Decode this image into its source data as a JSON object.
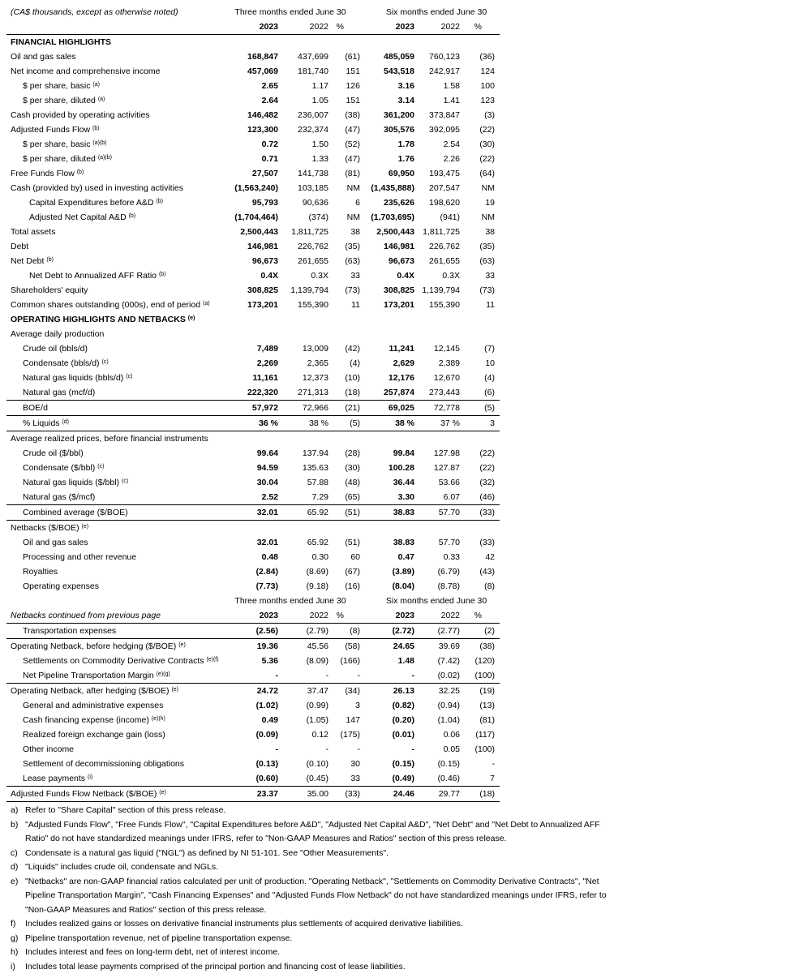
{
  "header": {
    "unit_note": "(CA$ thousands, except as otherwise noted)",
    "group_q": "Three months ended June 30",
    "group_h": "Six months ended June 30",
    "y2023": "2023",
    "y2022": "2022",
    "pct": "%"
  },
  "header2": {
    "unit_note": "Netbacks continued from previous page",
    "group_q": "Three months ended June 30",
    "group_h": "Six months ended June 30",
    "y2023": "2023",
    "y2022": "2022",
    "pct": "%"
  },
  "rows": [
    {
      "label": "FINANCIAL HIGHLIGHTS",
      "type": "sec"
    },
    {
      "label": "Oil and gas sales",
      "v": [
        "168,847",
        "437,699",
        "(61)",
        "485,059",
        "760,123",
        "(36)"
      ]
    },
    {
      "label": "Net income and comprehensive income",
      "v": [
        "457,069",
        "181,740",
        "151",
        "543,518",
        "242,917",
        "124"
      ]
    },
    {
      "label": "$ per share, basic",
      "sup": "(a)",
      "ind": 1,
      "v": [
        "2.65",
        "1.17",
        "126",
        "3.16",
        "1.58",
        "100"
      ]
    },
    {
      "label": "$ per share, diluted",
      "sup": "(a)",
      "ind": 1,
      "v": [
        "2.64",
        "1.05",
        "151",
        "3.14",
        "1.41",
        "123"
      ]
    },
    {
      "label": "Cash provided by operating activities",
      "v": [
        "146,482",
        "236,007",
        "(38)",
        "361,200",
        "373,847",
        "(3)"
      ]
    },
    {
      "label": "Adjusted Funds Flow",
      "sup": "(b)",
      "v": [
        "123,300",
        "232,374",
        "(47)",
        "305,576",
        "392,095",
        "(22)"
      ]
    },
    {
      "label": "$ per share, basic",
      "sup": "(a)(b)",
      "ind": 1,
      "v": [
        "0.72",
        "1.50",
        "(52)",
        "1.78",
        "2.54",
        "(30)"
      ]
    },
    {
      "label": "$ per share, diluted",
      "sup": "(a)(b)",
      "ind": 1,
      "v": [
        "0.71",
        "1.33",
        "(47)",
        "1.76",
        "2.26",
        "(22)"
      ]
    },
    {
      "label": "Free Funds Flow",
      "sup": "(b)",
      "v": [
        "27,507",
        "141,738",
        "(81)",
        "69,950",
        "193,475",
        "(64)"
      ]
    },
    {
      "label": "Cash (provided by) used in investing activities",
      "v": [
        "(1,563,240)",
        "103,185",
        "NM",
        "(1,435,888)",
        "207,547",
        "NM"
      ]
    },
    {
      "label": "Capital Expenditures before A&D",
      "sup": "(b)",
      "ind": 2,
      "v": [
        "95,793",
        "90,636",
        "6",
        "235,626",
        "198,620",
        "19"
      ]
    },
    {
      "label": "Adjusted Net Capital A&D",
      "sup": "(b)",
      "ind": 2,
      "v": [
        "(1,704,464)",
        "(374)",
        "NM",
        "(1,703,695)",
        "(941)",
        "NM"
      ]
    },
    {
      "label": "Total assets",
      "v": [
        "2,500,443",
        "1,811,725",
        "38",
        "2,500,443",
        "1,811,725",
        "38"
      ]
    },
    {
      "label": "Debt",
      "v": [
        "146,981",
        "226,762",
        "(35)",
        "146,981",
        "226,762",
        "(35)"
      ]
    },
    {
      "label": "Net Debt",
      "sup": "(b)",
      "v": [
        "96,673",
        "261,655",
        "(63)",
        "96,673",
        "261,655",
        "(63)"
      ]
    },
    {
      "label": "Net Debt to Annualized AFF Ratio",
      "sup": "(b)",
      "ind": 2,
      "v": [
        "0.4X",
        "0.3X",
        "33",
        "0.4X",
        "0.3X",
        "33"
      ]
    },
    {
      "label": "Shareholders' equity",
      "v": [
        "308,825",
        "1,139,794",
        "(73)",
        "308,825",
        "1,139,794",
        "(73)"
      ]
    },
    {
      "label": "Common shares outstanding (000s), end of period",
      "sup": "(a)",
      "v": [
        "173,201",
        "155,390",
        "11",
        "173,201",
        "155,390",
        "11"
      ]
    },
    {
      "label": "OPERATING HIGHLIGHTS AND NETBACKS",
      "sup": "(e)",
      "type": "sec"
    },
    {
      "label": "Average daily production",
      "type": "plain"
    },
    {
      "label": "Crude oil (bbls/d)",
      "ind": 1,
      "v": [
        "7,489",
        "13,009",
        "(42)",
        "11,241",
        "12,145",
        "(7)"
      ]
    },
    {
      "label": "Condensate (bbls/d)",
      "sup": "(c)",
      "ind": 1,
      "v": [
        "2,269",
        "2,365",
        "(4)",
        "2,629",
        "2,389",
        "10"
      ]
    },
    {
      "label": "Natural gas liquids (bbls/d)",
      "sup": "(c)",
      "ind": 1,
      "v": [
        "11,161",
        "12,373",
        "(10)",
        "12,176",
        "12,670",
        "(4)"
      ]
    },
    {
      "label": "Natural gas (mcf/d)",
      "ind": 1,
      "v": [
        "222,320",
        "271,313",
        "(18)",
        "257,874",
        "273,443",
        "(6)"
      ]
    },
    {
      "label": "BOE/d",
      "ind": 1,
      "bt": true,
      "v": [
        "57,972",
        "72,966",
        "(21)",
        "69,025",
        "72,778",
        "(5)"
      ]
    },
    {
      "label": "% Liquids",
      "sup": "(d)",
      "ind": 1,
      "bt": true,
      "bb": true,
      "v": [
        "36 %",
        "38 %",
        "(5)",
        "38 %",
        "37 %",
        "3"
      ]
    },
    {
      "label": "Average realized prices, before financial instruments",
      "type": "plain"
    },
    {
      "label": "Crude oil ($/bbl)",
      "ind": 1,
      "v": [
        "99.64",
        "137.94",
        "(28)",
        "99.84",
        "127.98",
        "(22)"
      ]
    },
    {
      "label": "Condensate ($/bbl)",
      "sup": "(c)",
      "ind": 1,
      "v": [
        "94.59",
        "135.63",
        "(30)",
        "100.28",
        "127.87",
        "(22)"
      ]
    },
    {
      "label": "Natural gas liquids ($/bbl)",
      "sup": "(c)",
      "ind": 1,
      "v": [
        "30.04",
        "57.88",
        "(48)",
        "36.44",
        "53.66",
        "(32)"
      ]
    },
    {
      "label": "Natural gas ($/mcf)",
      "ind": 1,
      "v": [
        "2.52",
        "7.29",
        "(65)",
        "3.30",
        "6.07",
        "(46)"
      ]
    },
    {
      "label": "Combined average ($/BOE)",
      "ind": 1,
      "bt": true,
      "bb": true,
      "v": [
        "32.01",
        "65.92",
        "(51)",
        "38.83",
        "57.70",
        "(33)"
      ]
    },
    {
      "label": "Netbacks ($/BOE)",
      "sup": "(e)",
      "type": "plain"
    },
    {
      "label": "Oil and gas sales",
      "ind": 1,
      "v": [
        "32.01",
        "65.92",
        "(51)",
        "38.83",
        "57.70",
        "(33)"
      ]
    },
    {
      "label": "Processing and other revenue",
      "ind": 1,
      "v": [
        "0.48",
        "0.30",
        "60",
        "0.47",
        "0.33",
        "42"
      ]
    },
    {
      "label": "Royalties",
      "ind": 1,
      "v": [
        "(2.84)",
        "(8.69)",
        "(67)",
        "(3.89)",
        "(6.79)",
        "(43)"
      ]
    },
    {
      "label": "Operating expenses",
      "ind": 1,
      "v": [
        "(7.73)",
        "(9.18)",
        "(16)",
        "(8.04)",
        "(8.78)",
        "(8)"
      ]
    }
  ],
  "rows2": [
    {
      "label": "Transportation expenses",
      "ind": 1,
      "v": [
        "(2.56)",
        "(2.79)",
        "(8)",
        "(2.72)",
        "(2.77)",
        "(2)"
      ]
    },
    {
      "label": "Operating Netback, before hedging ($/BOE)",
      "sup": "(e)",
      "bt": true,
      "v": [
        "19.36",
        "45.56",
        "(58)",
        "24.65",
        "39.69",
        "(38)"
      ]
    },
    {
      "label": "Settlements on Commodity Derivative Contracts",
      "sup": "(e)(f)",
      "ind": 1,
      "v": [
        "5.36",
        "(8.09)",
        "(166)",
        "1.48",
        "(7.42)",
        "(120)"
      ]
    },
    {
      "label": "Net Pipeline Transportation Margin",
      "sup": "(e)(g)",
      "ind": 1,
      "v": [
        "-",
        "-",
        "-",
        "-",
        "(0.02)",
        "(100)"
      ]
    },
    {
      "label": "Operating Netback, after hedging ($/BOE)",
      "sup": "(e)",
      "bt": true,
      "v": [
        "24.72",
        "37.47",
        "(34)",
        "26.13",
        "32.25",
        "(19)"
      ]
    },
    {
      "label": "General and administrative expenses",
      "ind": 1,
      "v": [
        "(1.02)",
        "(0.99)",
        "3",
        "(0.82)",
        "(0.94)",
        "(13)"
      ]
    },
    {
      "label": "Cash financing expense (income)",
      "sup": "(e)(h)",
      "ind": 1,
      "v": [
        "0.49",
        "(1.05)",
        "147",
        "(0.20)",
        "(1.04)",
        "(81)"
      ]
    },
    {
      "label": "Realized foreign exchange gain (loss)",
      "ind": 1,
      "v": [
        "(0.09)",
        "0.12",
        "(175)",
        "(0.01)",
        "0.06",
        "(117)"
      ]
    },
    {
      "label": "Other income",
      "ind": 1,
      "v": [
        "-",
        "-",
        "-",
        "-",
        "0.05",
        "(100)"
      ]
    },
    {
      "label": "Settlement of decommissioning obligations",
      "ind": 1,
      "v": [
        "(0.13)",
        "(0.10)",
        "30",
        "(0.15)",
        "(0.15)",
        "-"
      ]
    },
    {
      "label": "Lease payments",
      "sup": "(i)",
      "ind": 1,
      "v": [
        "(0.60)",
        "(0.45)",
        "33",
        "(0.49)",
        "(0.46)",
        "7"
      ]
    },
    {
      "label": "Adjusted Funds Flow Netback ($/BOE)",
      "sup": "(e)",
      "bt": true,
      "bb": true,
      "v": [
        "23.37",
        "35.00",
        "(33)",
        "24.46",
        "29.77",
        "(18)"
      ]
    }
  ],
  "notes": [
    {
      "l": "a)",
      "t": "Refer to \"Share Capital\" section of this press release."
    },
    {
      "l": "b)",
      "t": "\"Adjusted Funds Flow\", \"Free Funds Flow\", \"Capital Expenditures before A&D\", \"Adjusted Net Capital A&D\", \"Net Debt\" and \"Net Debt to Annualized AFF Ratio\" do not have standardized meanings under IFRS, refer to \"Non-GAAP Measures and Ratios\" section of this press release."
    },
    {
      "l": "c)",
      "t": "Condensate is a natural gas liquid (\"NGL\") as defined by NI 51-101. See \"Other Measurements\"."
    },
    {
      "l": "d)",
      "t": "\"Liquids\" includes crude oil, condensate and NGLs."
    },
    {
      "l": "e)",
      "t": "\"Netbacks\" are non-GAAP financial ratios calculated per unit of production. \"Operating Netback\", \"Settlements on Commodity Derivative Contracts\", \"Net Pipeline Transportation Margin\", \"Cash Financing Expenses\" and \"Adjusted Funds Flow Netback\" do not have standardized meanings under IFRS, refer to \"Non-GAAP Measures and Ratios\" section of this press release."
    },
    {
      "l": "f)",
      "t": "Includes realized gains or losses on derivative financial instruments plus settlements of acquired derivative liabilities."
    },
    {
      "l": "g)",
      "t": "Pipeline transportation revenue, net of pipeline transportation expense."
    },
    {
      "l": "h)",
      "t": "Includes interest and fees on long-term debt, net of interest income."
    },
    {
      "l": "i)",
      "t": "Includes total lease payments comprised of the principal portion and financing cost of lease liabilities."
    }
  ]
}
